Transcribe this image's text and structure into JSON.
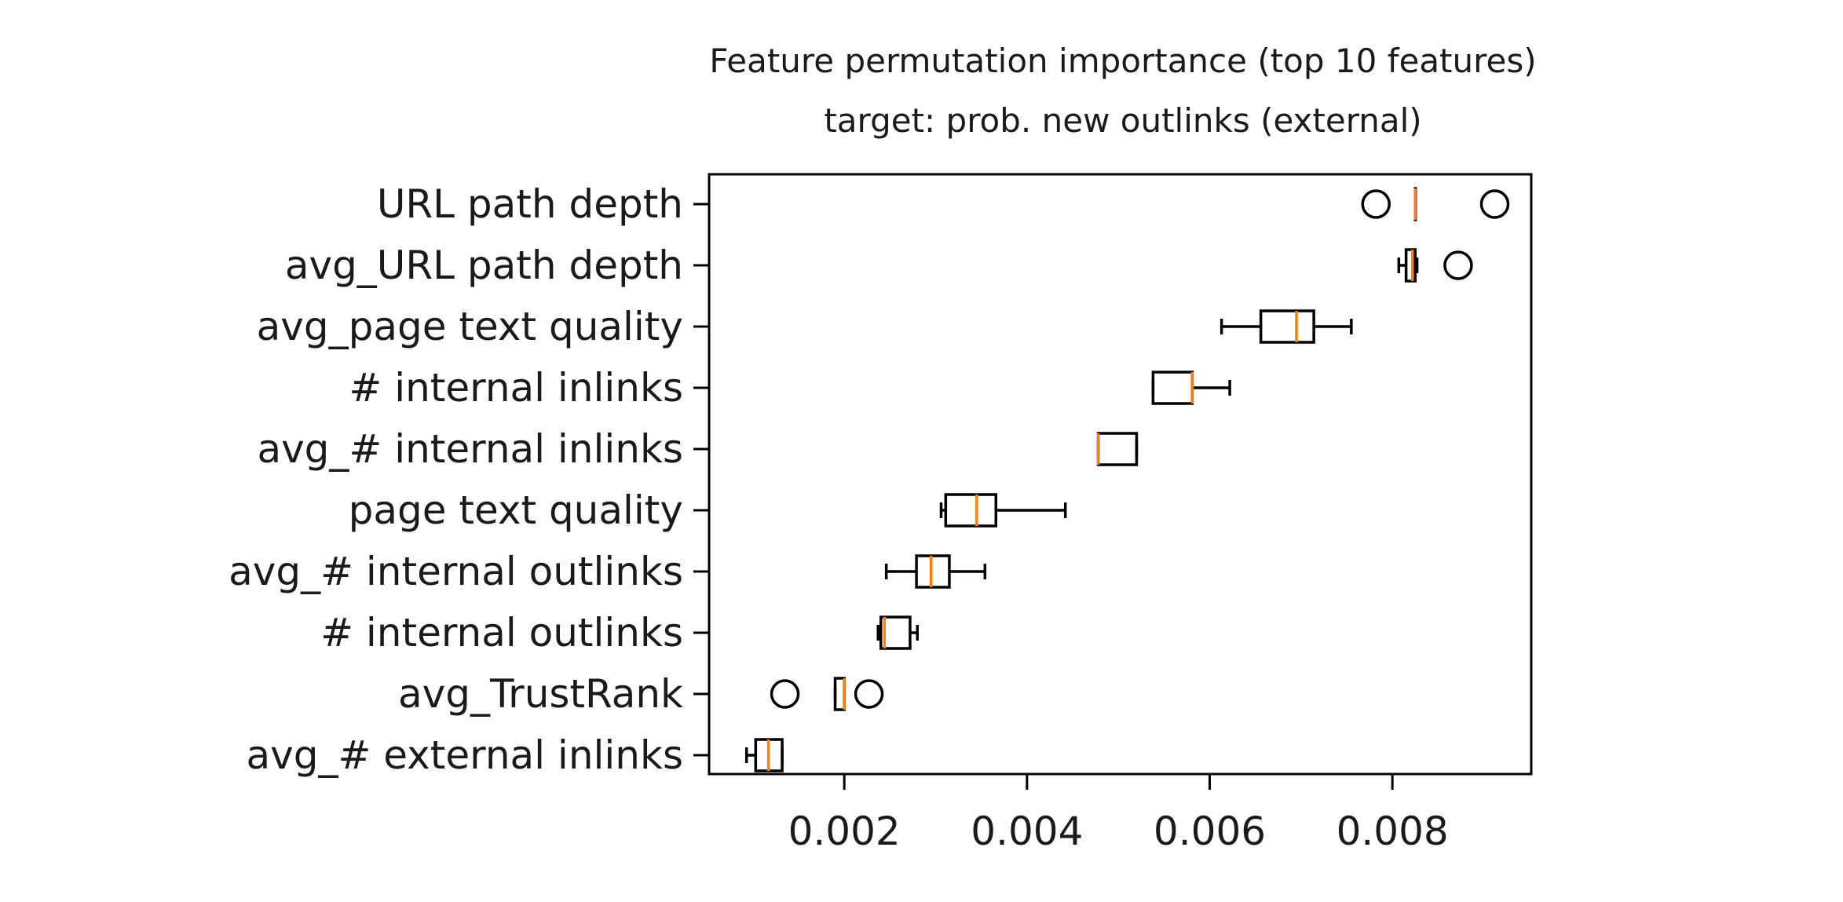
{
  "chart_data": {
    "type": "boxplot",
    "orientation": "horizontal",
    "title": "Feature permutation importance (top 10 features)",
    "subtitle": "target: prob. new outlinks (external)",
    "xlabel": "",
    "ylabel": "",
    "xlim": [
      0.00052,
      0.00952
    ],
    "xticks": [
      0.002,
      0.004,
      0.006,
      0.008
    ],
    "xtick_labels": [
      "0.002",
      "0.004",
      "0.006",
      "0.008"
    ],
    "grid": false,
    "median_color": "#ff7f0e",
    "box_color": "#000000",
    "categories": [
      "URL path depth",
      "avg_URL path depth",
      "avg_page text quality",
      "# internal inlinks",
      "avg_# internal inlinks",
      "page text quality",
      "avg_# internal outlinks",
      "# internal outlinks",
      "avg_TrustRank",
      "avg_# external inlinks"
    ],
    "boxes": [
      {
        "whislo": 0.00825,
        "q1": 0.00825,
        "med": 0.00825,
        "q3": 0.00825,
        "whishi": 0.00825,
        "fliers": [
          0.00782,
          0.00912
        ]
      },
      {
        "whislo": 0.00807,
        "q1": 0.00815,
        "med": 0.00822,
        "q3": 0.00825,
        "whishi": 0.00827,
        "fliers": [
          0.00872
        ]
      },
      {
        "whislo": 0.00613,
        "q1": 0.00656,
        "med": 0.00695,
        "q3": 0.00714,
        "whishi": 0.00755,
        "fliers": []
      },
      {
        "whislo": 0.00538,
        "q1": 0.00538,
        "med": 0.00581,
        "q3": 0.00581,
        "whishi": 0.00622,
        "fliers": []
      },
      {
        "whislo": 0.00478,
        "q1": 0.00478,
        "med": 0.00478,
        "q3": 0.0052,
        "whishi": 0.0052,
        "fliers": []
      },
      {
        "whislo": 0.00306,
        "q1": 0.00311,
        "med": 0.00345,
        "q3": 0.00366,
        "whishi": 0.00442,
        "fliers": []
      },
      {
        "whislo": 0.00246,
        "q1": 0.00279,
        "med": 0.00295,
        "q3": 0.00315,
        "whishi": 0.00354,
        "fliers": []
      },
      {
        "whislo": 0.00237,
        "q1": 0.0024,
        "med": 0.00244,
        "q3": 0.00272,
        "whishi": 0.0028,
        "fliers": []
      },
      {
        "whislo": 0.0019,
        "q1": 0.0019,
        "med": 0.002,
        "q3": 0.002,
        "whishi": 0.002,
        "fliers": [
          0.00135,
          0.00227
        ]
      },
      {
        "whislo": 0.00093,
        "q1": 0.00103,
        "med": 0.00117,
        "q3": 0.00132,
        "whishi": 0.00132,
        "fliers": []
      }
    ]
  }
}
